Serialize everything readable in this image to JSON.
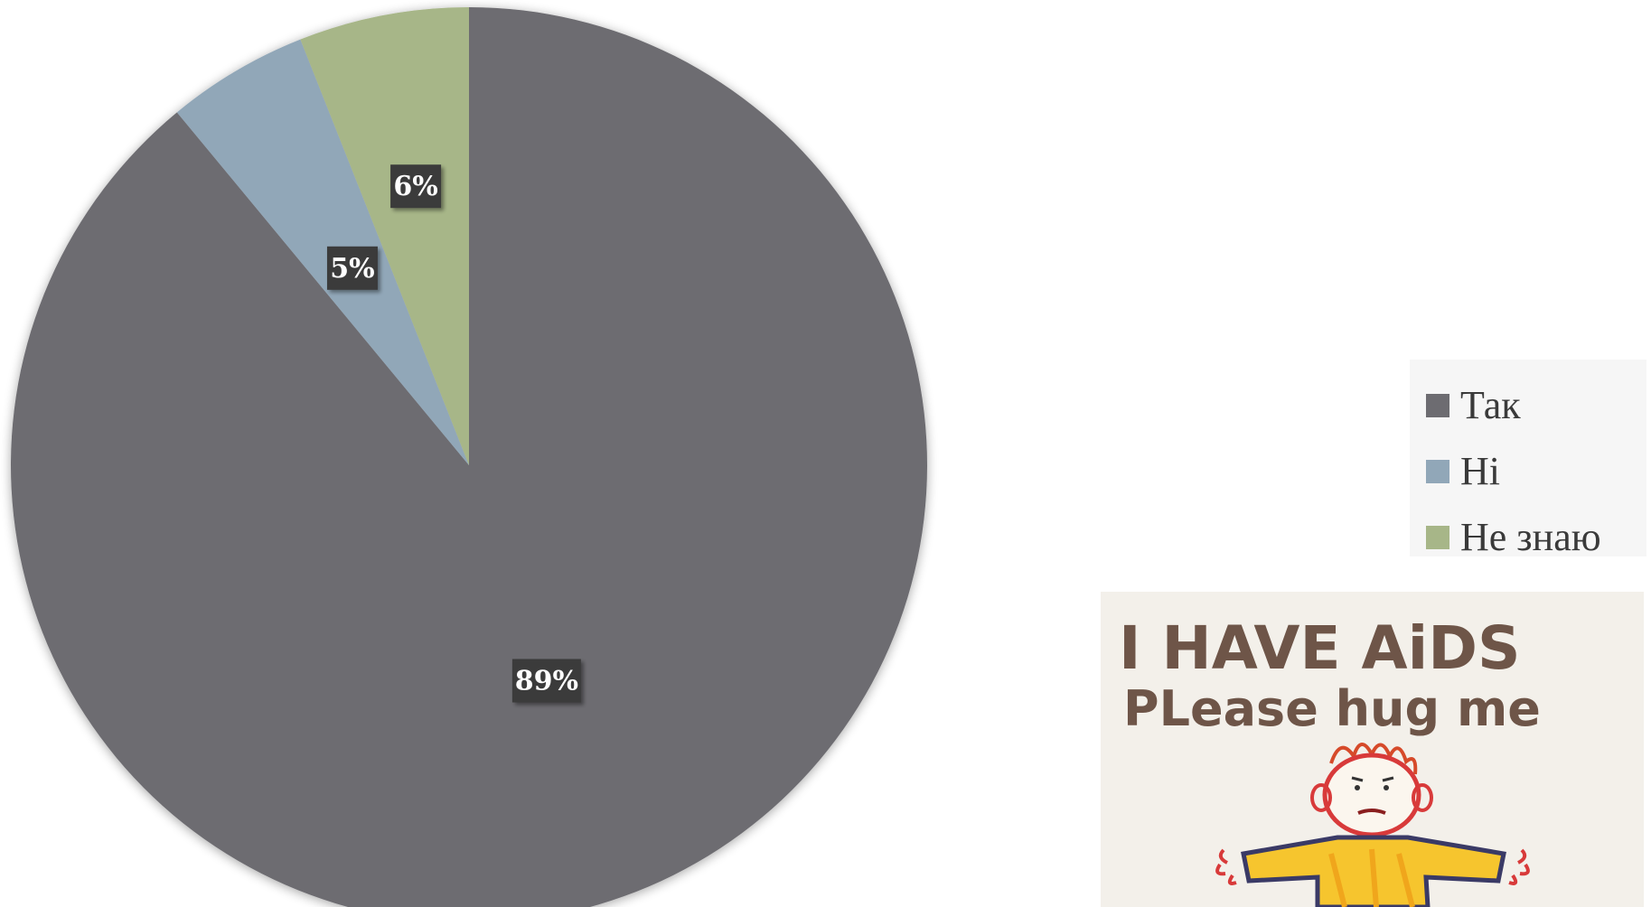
{
  "chart_data": {
    "type": "pie",
    "categories": [
      "Так",
      "Ні",
      "Не знаю"
    ],
    "values": [
      89,
      5,
      6
    ],
    "data_labels": [
      "89%",
      "5%",
      "6%"
    ],
    "colors": [
      "#6d6c71",
      "#91a7b8",
      "#a7b688"
    ],
    "legend_position": "right",
    "title": ""
  },
  "poster": {
    "line1": "I HAVE AiDS",
    "line2": "PLease hug me",
    "figure": "stick-figure-drawing"
  }
}
